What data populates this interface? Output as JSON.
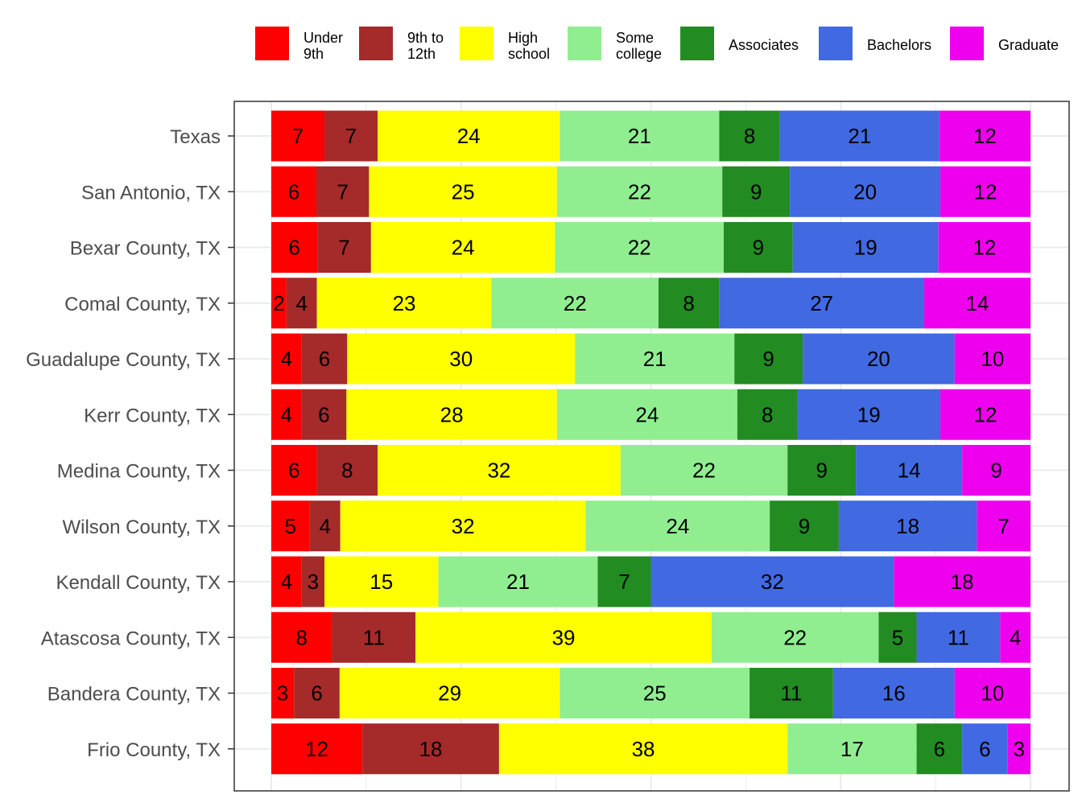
{
  "chart_data": {
    "type": "bar",
    "orientation": "horizontal",
    "stacked": true,
    "title": "",
    "xlabel": "",
    "ylabel": "",
    "xlim": [
      0,
      100
    ],
    "grid": true,
    "legend_position": "top",
    "categories": [
      "Texas",
      "San Antonio, TX",
      "Bexar County, TX",
      "Comal County, TX",
      "Guadalupe County, TX",
      "Kerr County, TX",
      "Medina County, TX",
      "Wilson County, TX",
      "Kendall County, TX",
      "Atascosa County, TX",
      "Bandera County, TX",
      "Frio County, TX"
    ],
    "series": [
      {
        "name": "Under 9th",
        "legend_lines": [
          "Under",
          "9th"
        ],
        "color": "#ff0000",
        "values": [
          7,
          6,
          6,
          2,
          4,
          4,
          6,
          5,
          4,
          8,
          3,
          12
        ]
      },
      {
        "name": "9th to 12th",
        "legend_lines": [
          "9th to",
          "12th"
        ],
        "color": "#a52a2a",
        "values": [
          7,
          7,
          7,
          4,
          6,
          6,
          8,
          4,
          3,
          11,
          6,
          18
        ]
      },
      {
        "name": "High school",
        "legend_lines": [
          "High",
          "school"
        ],
        "color": "#ffff00",
        "values": [
          24,
          25,
          24,
          23,
          30,
          28,
          32,
          32,
          15,
          39,
          29,
          38
        ]
      },
      {
        "name": "Some college",
        "legend_lines": [
          "Some",
          "college"
        ],
        "color": "#90ee90",
        "values": [
          21,
          22,
          22,
          22,
          21,
          24,
          22,
          24,
          21,
          22,
          25,
          17
        ]
      },
      {
        "name": "Associates",
        "legend_lines": [
          "Associates"
        ],
        "color": "#228b22",
        "values": [
          8,
          9,
          9,
          8,
          9,
          8,
          9,
          9,
          7,
          5,
          11,
          6
        ]
      },
      {
        "name": "Bachelors",
        "legend_lines": [
          "Bachelors"
        ],
        "color": "#4169e1",
        "values": [
          21,
          20,
          19,
          27,
          20,
          19,
          14,
          18,
          32,
          11,
          16,
          6
        ]
      },
      {
        "name": "Graduate",
        "legend_lines": [
          "Graduate"
        ],
        "color": "#ee00ee",
        "values": [
          12,
          12,
          12,
          14,
          10,
          12,
          9,
          7,
          18,
          4,
          10,
          3
        ]
      }
    ]
  }
}
